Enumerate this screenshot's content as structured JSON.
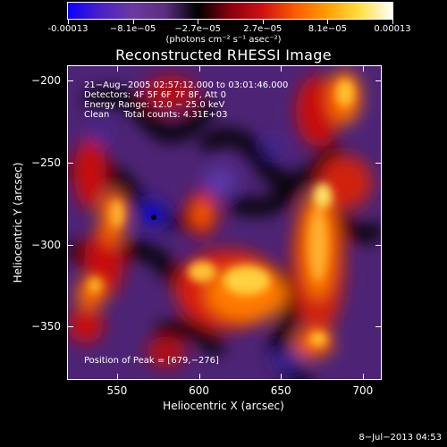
{
  "colorbar": {
    "tick_labels": [
      "-0.00013",
      "−8.1e−05",
      "−2.7e−05",
      "2.7e−05",
      "8.1e−05",
      "0.00013"
    ],
    "units": "(photons cm⁻² s⁻¹ asec⁻²)",
    "colors": [
      "#0a00ff",
      "#4a20c8",
      "#6a3aa0",
      "#5a2e80",
      "#000000",
      "#8a0010",
      "#d01010",
      "#ff5a00",
      "#ffa000",
      "#ffe040",
      "#ffffff"
    ]
  },
  "title": "Reconstructed RHESSI Image",
  "info": {
    "time": "21−Aug−2005 02:57:12.000 to 03:01:46.000",
    "detectors": "Detectors: 4F 5F 6F 7F 8F, Att 0",
    "energy": "Energy Range: 12.0 − 25.0 keV",
    "clean": "Clean     Total counts: 4.31E+03",
    "peak": "Position of Peak = [679,−276]"
  },
  "axes": {
    "xlabel": "Heliocentric X (arcsec)",
    "ylabel": "Heliocentric Y (arcsec)",
    "xticks": [
      "550",
      "600",
      "650",
      "700"
    ],
    "yticks": [
      "−200",
      "−250",
      "−300",
      "−350"
    ],
    "xlim": [
      520,
      711
    ],
    "ylim": [
      -382,
      -191
    ]
  },
  "datestamp": "8−Jul−2013 04:53"
}
